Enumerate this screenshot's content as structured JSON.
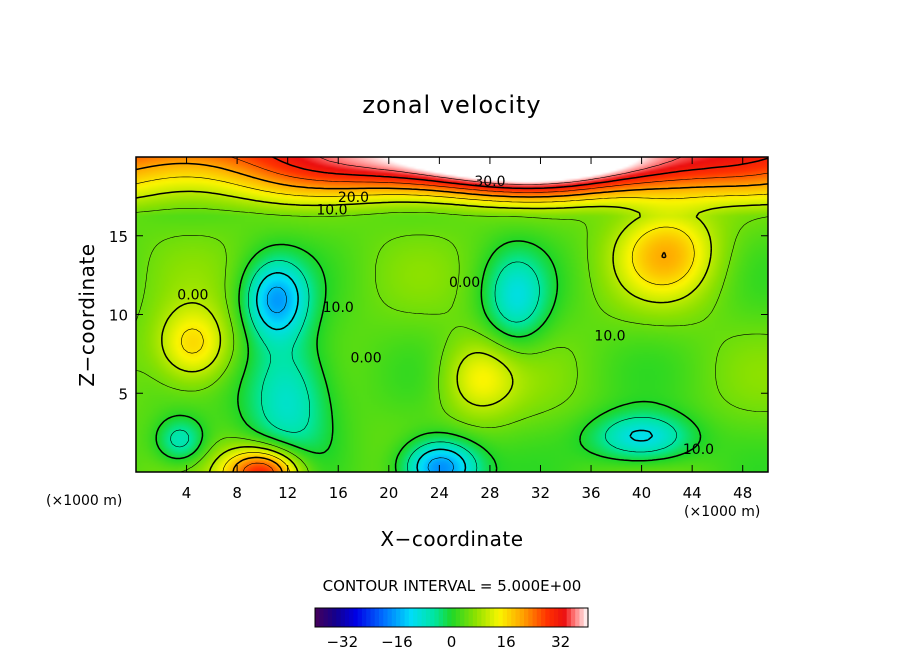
{
  "chart_data": {
    "type": "heatmap",
    "title": "zonal velocity",
    "xlabel": "X−coordinate",
    "ylabel": "Z−coordinate",
    "x_unit": "(×1000 m)",
    "y_unit": "(×1000 m)",
    "xlim": [
      0,
      50
    ],
    "ylim": [
      0,
      20
    ],
    "x_ticks": [
      {
        "value": 4,
        "label": "4"
      },
      {
        "value": 8,
        "label": "8"
      },
      {
        "value": 12,
        "label": "12"
      },
      {
        "value": 16,
        "label": "16"
      },
      {
        "value": 20,
        "label": "20"
      },
      {
        "value": 24,
        "label": "24"
      },
      {
        "value": 28,
        "label": "28"
      },
      {
        "value": 32,
        "label": "32"
      },
      {
        "value": 36,
        "label": "36"
      },
      {
        "value": 40,
        "label": "40"
      },
      {
        "value": 44,
        "label": "44"
      },
      {
        "value": 48,
        "label": "48"
      }
    ],
    "y_ticks": [
      {
        "value": 5,
        "label": "5"
      },
      {
        "value": 10,
        "label": "10"
      },
      {
        "value": 15,
        "label": "15"
      }
    ],
    "contour_interval_text": "CONTOUR INTERVAL = 5.000E+00",
    "colorbar": {
      "min": -40,
      "max": 40,
      "ticks": [
        {
          "value": -32,
          "label": "−32"
        },
        {
          "value": -16,
          "label": "−16"
        },
        {
          "value": 0,
          "label": "0"
        },
        {
          "value": 16,
          "label": "16"
        },
        {
          "value": 32,
          "label": "32"
        }
      ]
    },
    "contour_labels": [
      {
        "text": "30.0",
        "x": 28,
        "z": 18.4
      },
      {
        "text": "20.0",
        "x": 17.2,
        "z": 17.4
      },
      {
        "text": "10.0",
        "x": 15.5,
        "z": 16.6
      },
      {
        "text": "0.00",
        "x": 4.5,
        "z": 11.2
      },
      {
        "text": "10.0",
        "x": 16,
        "z": 10.4
      },
      {
        "text": "0.00",
        "x": 18.2,
        "z": 7.2
      },
      {
        "text": "0.00",
        "x": 26,
        "z": 12.0
      },
      {
        "text": "10.0",
        "x": 37.5,
        "z": 8.6
      },
      {
        "text": "10.0",
        "x": 44.5,
        "z": 1.4
      }
    ],
    "field_features": [
      {
        "kind": "jet",
        "value": 35,
        "x": 30,
        "z": 19.6,
        "sx": 14,
        "sz": 1.8
      },
      {
        "kind": "max",
        "value": 18,
        "x": 42,
        "z": 14,
        "sx": 4,
        "sz": 3
      },
      {
        "kind": "max",
        "value": 18,
        "x": 4.5,
        "z": 8,
        "sx": 3,
        "sz": 2.5
      },
      {
        "kind": "max",
        "value": 14,
        "x": 27,
        "z": 6,
        "sx": 3,
        "sz": 2.5
      },
      {
        "kind": "max",
        "value": 32,
        "x": 10,
        "z": 0,
        "sx": 3,
        "sz": 1.6
      },
      {
        "kind": "min",
        "value": -14,
        "x": 11,
        "z": 11,
        "sx": 2.5,
        "sz": 2.5
      },
      {
        "kind": "min",
        "value": -10,
        "x": 12,
        "z": 5,
        "sx": 3.5,
        "sz": 4
      },
      {
        "kind": "min",
        "value": -20,
        "x": 24,
        "z": 0.3,
        "sx": 3,
        "sz": 1.8
      },
      {
        "kind": "min",
        "value": -8,
        "x": 30,
        "z": 11,
        "sx": 2.5,
        "sz": 3
      },
      {
        "kind": "min",
        "value": -12,
        "x": 40,
        "z": 2.2,
        "sx": 4,
        "sz": 1.6
      },
      {
        "kind": "min",
        "value": -8,
        "x": 3.5,
        "z": 2,
        "sx": 2,
        "sz": 1.5
      }
    ]
  }
}
